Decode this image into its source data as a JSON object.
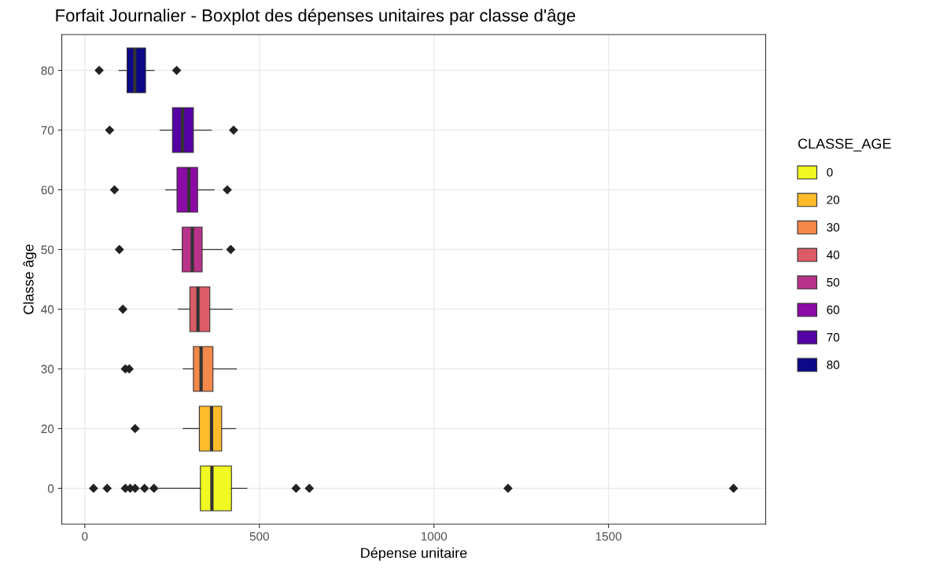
{
  "chart_data": {
    "type": "box",
    "orientation": "horizontal",
    "title": "Forfait Journalier - Boxplot des dépenses unitaires par classe d'âge",
    "xlabel": "Dépense unitaire",
    "ylabel": "Classe âge",
    "legend_title": "CLASSE_AGE",
    "categories": [
      "80",
      "70",
      "60",
      "50",
      "40",
      "30",
      "20",
      "0"
    ],
    "series": [
      {
        "name": "0",
        "color": "#f0f921",
        "boxes": [
          null,
          null,
          null,
          null,
          null,
          null,
          null,
          {
            "low": 212,
            "q1": 331,
            "median": 364,
            "q3": 420,
            "high": 464,
            "outliers": [
              25,
              64,
              116,
              130,
              144,
              171,
              198,
              605,
              643,
              1212,
              1858
            ]
          }
        ]
      },
      {
        "name": "20",
        "color": "#febc2a",
        "boxes": [
          null,
          null,
          null,
          null,
          null,
          null,
          {
            "low": 282,
            "q1": 328,
            "median": 363,
            "q3": 392,
            "high": 432,
            "outliers": [
              144
            ]
          },
          null
        ]
      },
      {
        "name": "30",
        "color": "#f48849",
        "boxes": [
          null,
          null,
          null,
          null,
          null,
          {
            "low": 282,
            "q1": 311,
            "median": 333,
            "q3": 367,
            "high": 434,
            "outliers": [
              116,
              127
            ]
          },
          null,
          null
        ]
      },
      {
        "name": "40",
        "color": "#db5c68",
        "boxes": [
          null,
          null,
          null,
          null,
          {
            "low": 268,
            "q1": 301,
            "median": 324,
            "q3": 358,
            "high": 422,
            "outliers": [
              109
            ]
          },
          null,
          null,
          null
        ]
      },
      {
        "name": "50",
        "color": "#b93289",
        "boxes": [
          null,
          null,
          null,
          {
            "low": 251,
            "q1": 279,
            "median": 308,
            "q3": 336,
            "high": 393,
            "outliers": [
              99,
              418
            ]
          },
          null,
          null,
          null,
          null
        ]
      },
      {
        "name": "60",
        "color": "#8b0aa5",
        "boxes": [
          null,
          null,
          {
            "low": 232,
            "q1": 264,
            "median": 298,
            "q3": 323,
            "high": 370,
            "outliers": [
              85,
              408
            ]
          },
          null,
          null,
          null,
          null,
          null
        ]
      },
      {
        "name": "70",
        "color": "#5402a3",
        "boxes": [
          null,
          {
            "low": 216,
            "q1": 251,
            "median": 280,
            "q3": 311,
            "high": 362,
            "outliers": [
              71,
              426
            ]
          },
          null,
          null,
          null,
          null,
          null,
          null
        ]
      },
      {
        "name": "80",
        "color": "#0d0887",
        "boxes": [
          {
            "low": 98,
            "q1": 121,
            "median": 143,
            "q3": 174,
            "high": 198,
            "outliers": [
              41,
              263
            ]
          },
          null,
          null,
          null,
          null,
          null,
          null,
          null
        ]
      }
    ],
    "xlim": [
      -66,
      1950
    ],
    "xticks": [
      0,
      500,
      1000,
      1500
    ],
    "grid": true,
    "legend": "right"
  }
}
